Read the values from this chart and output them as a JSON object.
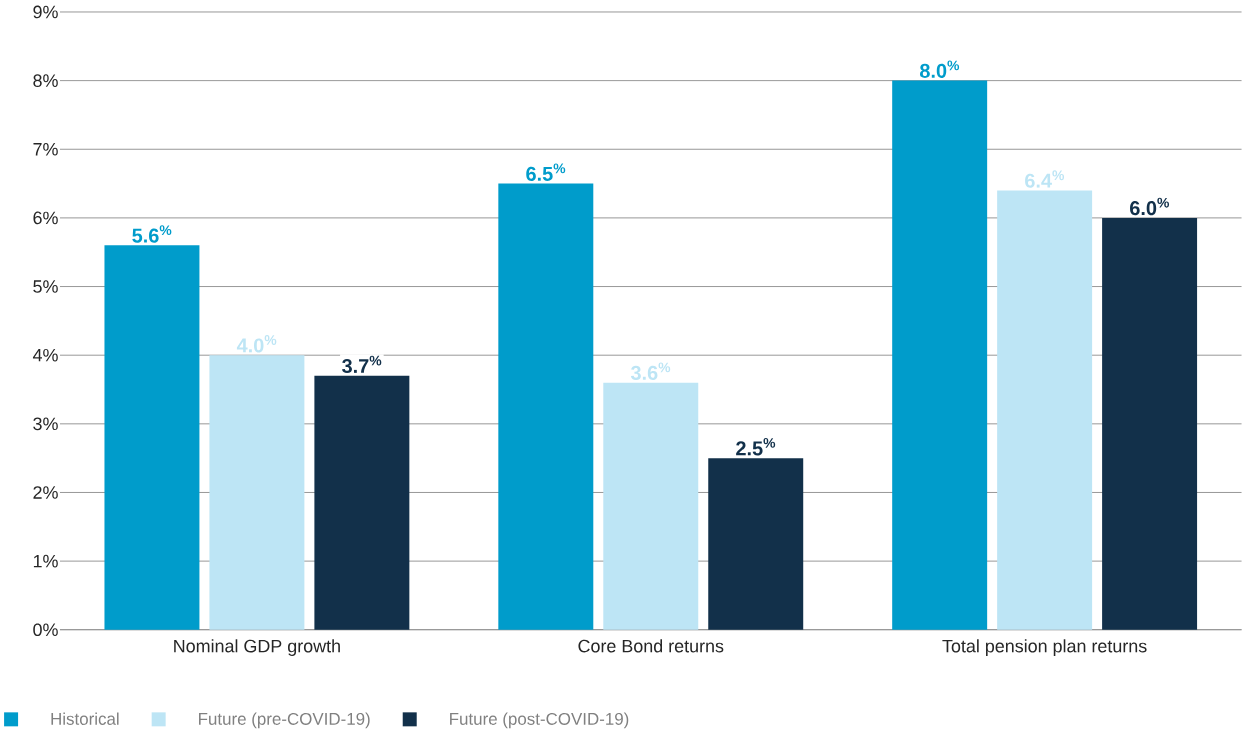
{
  "chart_data": {
    "type": "bar",
    "categories": [
      "Nominal GDP growth",
      "Core Bond returns",
      "Total pension plan returns"
    ],
    "series": [
      {
        "name": "Historical",
        "color": "#009ccb",
        "values": [
          5.6,
          6.5,
          8.0
        ],
        "value_labels": [
          "5.6$^{%}$",
          "6.5$^{%}$",
          "8.0$^{%}$"
        ]
      },
      {
        "name": "Future (pre-COVID-19)",
        "color": "#bde5f5",
        "values": [
          4.0,
          3.6,
          6.4
        ],
        "value_labels": [
          "4.0$^{%}$",
          "3.6$^{%}$",
          "6.4$^{%}$"
        ]
      },
      {
        "name": "Future (post-COVID-19)",
        "color": "#12304a",
        "values": [
          3.7,
          2.5,
          6.0
        ],
        "value_labels": [
          "3.7$^{%}$",
          "2.5$^{%}$",
          "6.0$^{%}$"
        ]
      }
    ],
    "ylim": [
      0,
      9
    ],
    "yticks": [
      {
        "value": 0,
        "label": "0%"
      },
      {
        "value": 1,
        "label": "1%"
      },
      {
        "value": 2,
        "label": "2%"
      },
      {
        "value": 3,
        "label": "3%"
      },
      {
        "value": 4,
        "label": "4%"
      },
      {
        "value": 5,
        "label": "5%"
      },
      {
        "value": 6,
        "label": "6%"
      },
      {
        "value": 7,
        "label": "7%"
      },
      {
        "value": 8,
        "label": "8%"
      },
      {
        "value": 9,
        "label": "9%"
      }
    ],
    "grid": "y",
    "legend": "bottom left"
  }
}
